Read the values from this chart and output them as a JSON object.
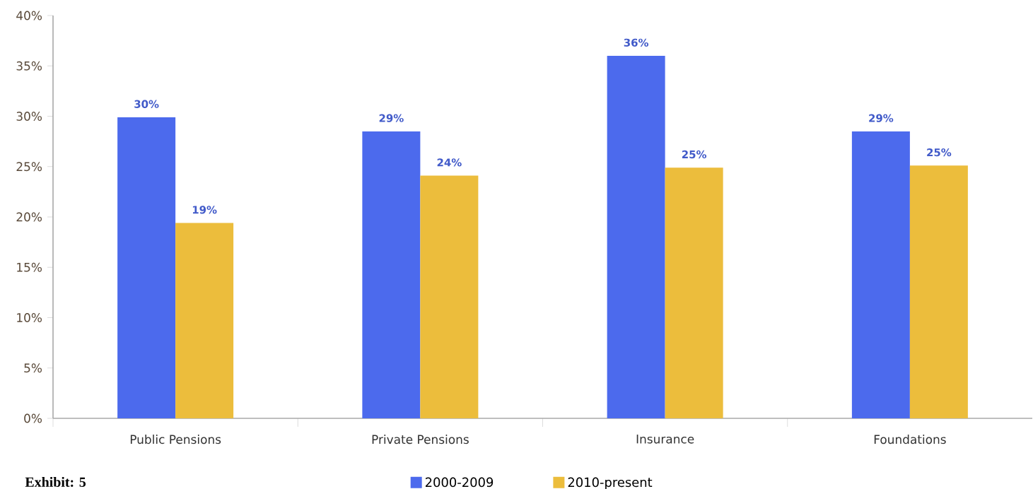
{
  "chart_data": {
    "type": "bar",
    "categories": [
      "Public Pensions",
      "Private Pensions",
      "Insurance",
      "Foundations"
    ],
    "series": [
      {
        "name": "2000-2009",
        "color": "#4c6aed",
        "values": [
          29.9,
          28.5,
          36,
          28.5
        ],
        "value_labels": [
          "30%",
          "29%",
          "36%",
          "29%"
        ]
      },
      {
        "name": "2010-present",
        "color": "#ecbd3c",
        "values": [
          19.4,
          24.1,
          24.9,
          25.1
        ],
        "value_labels": [
          "19%",
          "24%",
          "25%",
          "25%"
        ]
      }
    ],
    "ylim": [
      0,
      40
    ],
    "yticks": [
      {
        "value": 0,
        "label": "0%"
      },
      {
        "value": 5,
        "label": "5%"
      },
      {
        "value": 10,
        "label": "10%"
      },
      {
        "value": 15,
        "label": "15%"
      },
      {
        "value": 20,
        "label": "20%"
      },
      {
        "value": 25,
        "label": "25%"
      },
      {
        "value": 30,
        "label": "30%"
      },
      {
        "value": 35,
        "label": "35%"
      },
      {
        "value": 40,
        "label": "40%"
      }
    ],
    "grid": false,
    "legend": "bottom",
    "annotations": [
      "Exhibit: 5"
    ]
  }
}
